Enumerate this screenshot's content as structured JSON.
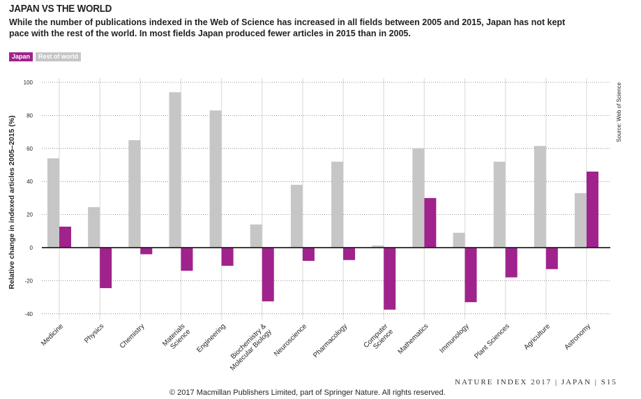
{
  "header": {
    "title": "JAPAN VS THE WORLD",
    "subtitle": "While the number of publications indexed in the Web of Science has increased in all fields between 2005 and 2015, Japan has not kept pace with the rest of the world. In most fields Japan produced fewer articles in 2015 than in 2005."
  },
  "source": "Source: Web of Science",
  "footer": {
    "page": "NATURE INDEX 2017 | JAPAN  |  S15",
    "copyright": "© 2017 Macmillan Publishers Limited, part of Springer Nature. All rights reserved."
  },
  "colors": {
    "japan": "#a0228d",
    "rest": "#c6c6c6"
  },
  "chart_data": {
    "type": "bar",
    "title": "JAPAN VS THE WORLD",
    "xlabel": "",
    "ylabel": "Relative change in indexed articles  2005–2015 (%)",
    "ylim": [
      -40,
      100
    ],
    "yticks": [
      -40,
      -20,
      0,
      20,
      40,
      60,
      80,
      100
    ],
    "legend": "top-left",
    "categories": [
      "Medicine",
      "Physics",
      "Chemistry",
      "Materials Science",
      "Engineering",
      "Biochemistry & Molecular Biology",
      "Neuroscience",
      "Pharmacology",
      "Computer Science",
      "Mathematics",
      "Immunology",
      "Plant Sciences",
      "Agriculture",
      "Astronomy"
    ],
    "series": [
      {
        "name": "Rest of world",
        "values": [
          54,
          24.5,
          65,
          94,
          83,
          14,
          38,
          52,
          1.3,
          60,
          9,
          52,
          61.5,
          33
        ]
      },
      {
        "name": "Japan",
        "values": [
          12.7,
          -24.5,
          -4,
          -14,
          -11,
          -32.5,
          -8,
          -7.5,
          -37.5,
          30,
          -33,
          -18,
          -13,
          46
        ]
      }
    ]
  }
}
